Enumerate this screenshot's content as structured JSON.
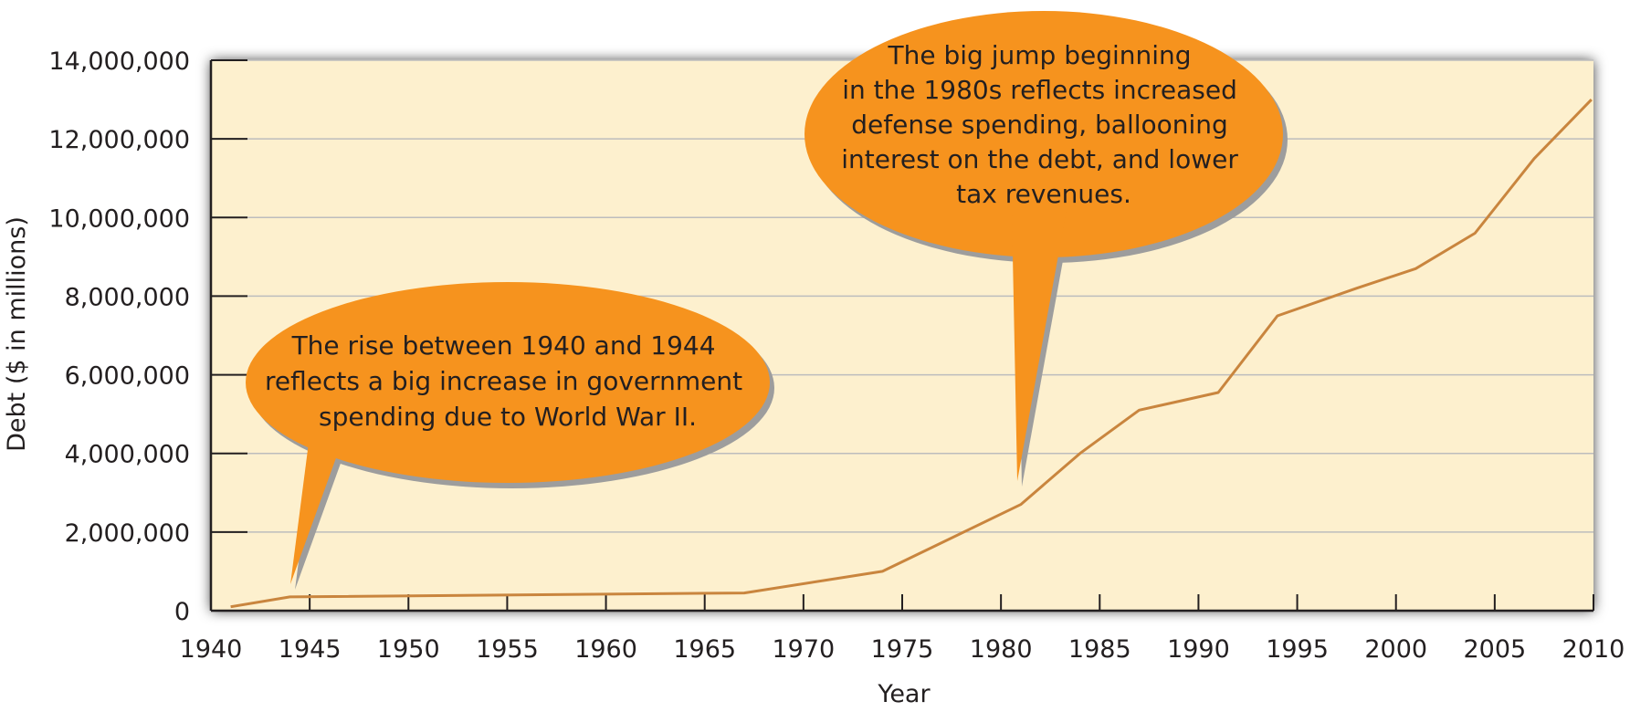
{
  "chart_data": {
    "type": "line",
    "title": "",
    "xlabel": "Year",
    "ylabel": "Debt ($ in millions)",
    "xlim": [
      1940,
      2010
    ],
    "ylim": [
      0,
      14000000
    ],
    "x_ticks": [
      "1940",
      "1945",
      "1950",
      "1955",
      "1960",
      "1965",
      "1970",
      "1975",
      "1980",
      "1985",
      "1990",
      "1995",
      "2000",
      "2005",
      "2010"
    ],
    "y_ticks": [
      "0",
      "2,000,000",
      "4,000,000",
      "6,000,000",
      "8,000,000",
      "10,000,000",
      "12,000,000",
      "14,000,000"
    ],
    "grid": true,
    "legend": "none",
    "series": [
      {
        "x": [
          1941,
          1944,
          1967,
          1974,
          1981,
          1984,
          1987,
          1991,
          1994,
          1998,
          2001,
          2004,
          2007,
          2009.9
        ],
        "values": [
          100000,
          350000,
          450000,
          1000000,
          2700000,
          4000000,
          5100000,
          5550000,
          7500000,
          8200000,
          8700000,
          9600000,
          11500000,
          13000000
        ]
      }
    ],
    "annotations": [
      {
        "text_lines": [
          "The rise between 1940 and 1944",
          "reflects a big increase in government",
          "spending due to World War II."
        ]
      },
      {
        "text_lines": [
          "The big jump beginning",
          "in the 1980s reflects increased",
          "defense spending, ballooning",
          "interest on the debt, and lower",
          "tax revenues."
        ]
      }
    ],
    "colors": {
      "plot_background": "#fdf0ce",
      "line": "#c9853e",
      "bubble": "#f6931e",
      "bubble_shadow": "#9d9d9d",
      "gridline": "#bdbdbd",
      "frame_shadow": "#555555"
    }
  }
}
